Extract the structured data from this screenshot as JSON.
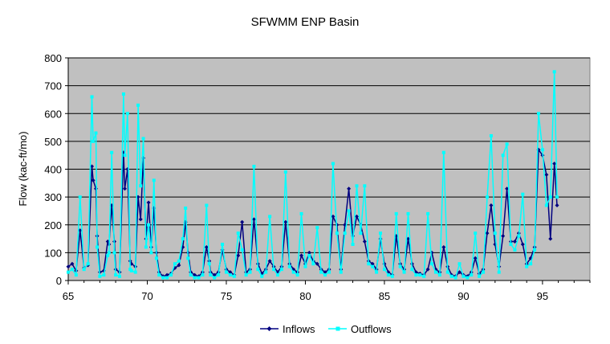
{
  "chart_data": {
    "type": "line",
    "title": "SFWMM ENP Basin",
    "xlabel": "",
    "ylabel": "Flow (kac-ft/mo)",
    "xlim": [
      65,
      98
    ],
    "ylim": [
      0,
      800
    ],
    "xticks": [
      65,
      70,
      75,
      80,
      85,
      90,
      95
    ],
    "yticks": [
      0,
      100,
      200,
      300,
      400,
      500,
      600,
      700,
      800
    ],
    "grid": true,
    "legend_position": "bottom",
    "plot_background": "#c0c0c0",
    "series": [
      {
        "name": "Inflows",
        "color": "#000080",
        "marker": "diamond",
        "points": [
          [
            65.0,
            50
          ],
          [
            65.25,
            60
          ],
          [
            65.5,
            35
          ],
          [
            65.75,
            180
          ],
          [
            66.0,
            45
          ],
          [
            66.25,
            55
          ],
          [
            66.5,
            410
          ],
          [
            66.58,
            360
          ],
          [
            66.75,
            330
          ],
          [
            66.83,
            160
          ],
          [
            67.0,
            30
          ],
          [
            67.25,
            35
          ],
          [
            67.5,
            140
          ],
          [
            67.58,
            130
          ],
          [
            67.75,
            270
          ],
          [
            67.92,
            140
          ],
          [
            68.0,
            40
          ],
          [
            68.25,
            30
          ],
          [
            68.5,
            460
          ],
          [
            68.58,
            330
          ],
          [
            68.75,
            400
          ],
          [
            68.92,
            70
          ],
          [
            69.0,
            60
          ],
          [
            69.25,
            50
          ],
          [
            69.42,
            300
          ],
          [
            69.58,
            220
          ],
          [
            69.75,
            440
          ],
          [
            69.92,
            150
          ],
          [
            70.08,
            280
          ],
          [
            70.25,
            120
          ],
          [
            70.42,
            260
          ],
          [
            70.58,
            100
          ],
          [
            70.75,
            30
          ],
          [
            71.0,
            15
          ],
          [
            71.25,
            20
          ],
          [
            71.5,
            25
          ],
          [
            71.75,
            45
          ],
          [
            72.0,
            55
          ],
          [
            72.25,
            120
          ],
          [
            72.42,
            210
          ],
          [
            72.58,
            100
          ],
          [
            72.75,
            30
          ],
          [
            73.0,
            20
          ],
          [
            73.25,
            15
          ],
          [
            73.5,
            30
          ],
          [
            73.75,
            120
          ],
          [
            73.92,
            70
          ],
          [
            74.0,
            30
          ],
          [
            74.25,
            20
          ],
          [
            74.5,
            30
          ],
          [
            74.75,
            110
          ],
          [
            75.0,
            40
          ],
          [
            75.25,
            30
          ],
          [
            75.5,
            20
          ],
          [
            75.75,
            90
          ],
          [
            76.0,
            210
          ],
          [
            76.25,
            30
          ],
          [
            76.5,
            40
          ],
          [
            76.75,
            220
          ],
          [
            77.0,
            60
          ],
          [
            77.25,
            25
          ],
          [
            77.5,
            40
          ],
          [
            77.75,
            70
          ],
          [
            78.0,
            50
          ],
          [
            78.25,
            30
          ],
          [
            78.5,
            50
          ],
          [
            78.75,
            210
          ],
          [
            79.0,
            60
          ],
          [
            79.25,
            40
          ],
          [
            79.5,
            30
          ],
          [
            79.75,
            90
          ],
          [
            80.0,
            60
          ],
          [
            80.25,
            100
          ],
          [
            80.5,
            70
          ],
          [
            80.75,
            60
          ],
          [
            81.0,
            40
          ],
          [
            81.25,
            30
          ],
          [
            81.5,
            40
          ],
          [
            81.75,
            230
          ],
          [
            82.0,
            200
          ],
          [
            82.25,
            40
          ],
          [
            82.5,
            200
          ],
          [
            82.75,
            330
          ],
          [
            83.0,
            160
          ],
          [
            83.25,
            230
          ],
          [
            83.5,
            200
          ],
          [
            83.75,
            140
          ],
          [
            84.0,
            70
          ],
          [
            84.25,
            60
          ],
          [
            84.5,
            40
          ],
          [
            84.75,
            150
          ],
          [
            85.0,
            60
          ],
          [
            85.25,
            30
          ],
          [
            85.5,
            20
          ],
          [
            85.75,
            160
          ],
          [
            86.0,
            60
          ],
          [
            86.25,
            40
          ],
          [
            86.5,
            150
          ],
          [
            86.75,
            60
          ],
          [
            87.0,
            30
          ],
          [
            87.25,
            25
          ],
          [
            87.5,
            20
          ],
          [
            87.75,
            40
          ],
          [
            88.0,
            100
          ],
          [
            88.25,
            40
          ],
          [
            88.5,
            30
          ],
          [
            88.75,
            120
          ],
          [
            89.0,
            50
          ],
          [
            89.25,
            20
          ],
          [
            89.5,
            15
          ],
          [
            89.75,
            30
          ],
          [
            90.0,
            20
          ],
          [
            90.25,
            15
          ],
          [
            90.5,
            30
          ],
          [
            90.75,
            80
          ],
          [
            91.0,
            25
          ],
          [
            91.25,
            40
          ],
          [
            91.5,
            170
          ],
          [
            91.75,
            270
          ],
          [
            92.0,
            130
          ],
          [
            92.25,
            50
          ],
          [
            92.5,
            160
          ],
          [
            92.75,
            330
          ],
          [
            93.0,
            140
          ],
          [
            93.25,
            140
          ],
          [
            93.5,
            170
          ],
          [
            93.75,
            130
          ],
          [
            94.0,
            60
          ],
          [
            94.25,
            80
          ],
          [
            94.5,
            120
          ],
          [
            94.75,
            470
          ],
          [
            95.0,
            450
          ],
          [
            95.25,
            380
          ],
          [
            95.5,
            150
          ],
          [
            95.75,
            420
          ],
          [
            95.92,
            270
          ]
        ]
      },
      {
        "name": "Outflows",
        "color": "#00ffff",
        "marker": "square",
        "points": [
          [
            65.0,
            30
          ],
          [
            65.25,
            40
          ],
          [
            65.5,
            20
          ],
          [
            65.75,
            300
          ],
          [
            66.0,
            40
          ],
          [
            66.25,
            60
          ],
          [
            66.5,
            660
          ],
          [
            66.58,
            500
          ],
          [
            66.75,
            530
          ],
          [
            66.83,
            120
          ],
          [
            67.0,
            15
          ],
          [
            67.25,
            20
          ],
          [
            67.5,
            90
          ],
          [
            67.58,
            100
          ],
          [
            67.75,
            460
          ],
          [
            67.92,
            100
          ],
          [
            68.0,
            20
          ],
          [
            68.25,
            15
          ],
          [
            68.5,
            670
          ],
          [
            68.58,
            450
          ],
          [
            68.75,
            600
          ],
          [
            68.92,
            40
          ],
          [
            69.0,
            35
          ],
          [
            69.25,
            30
          ],
          [
            69.42,
            630
          ],
          [
            69.58,
            340
          ],
          [
            69.75,
            510
          ],
          [
            69.92,
            120
          ],
          [
            70.08,
            200
          ],
          [
            70.25,
            100
          ],
          [
            70.42,
            360
          ],
          [
            70.58,
            80
          ],
          [
            70.75,
            20
          ],
          [
            71.0,
            10
          ],
          [
            71.25,
            10
          ],
          [
            71.5,
            20
          ],
          [
            71.75,
            60
          ],
          [
            72.0,
            70
          ],
          [
            72.25,
            150
          ],
          [
            72.42,
            260
          ],
          [
            72.58,
            80
          ],
          [
            72.75,
            20
          ],
          [
            73.0,
            10
          ],
          [
            73.25,
            10
          ],
          [
            73.5,
            20
          ],
          [
            73.75,
            270
          ],
          [
            73.92,
            60
          ],
          [
            74.0,
            20
          ],
          [
            74.25,
            10
          ],
          [
            74.5,
            20
          ],
          [
            74.75,
            130
          ],
          [
            75.0,
            30
          ],
          [
            75.25,
            20
          ],
          [
            75.5,
            15
          ],
          [
            75.75,
            170
          ],
          [
            76.0,
            110
          ],
          [
            76.25,
            20
          ],
          [
            76.5,
            30
          ],
          [
            76.75,
            410
          ],
          [
            77.0,
            40
          ],
          [
            77.25,
            15
          ],
          [
            77.5,
            30
          ],
          [
            77.75,
            230
          ],
          [
            78.0,
            40
          ],
          [
            78.25,
            20
          ],
          [
            78.5,
            40
          ],
          [
            78.75,
            390
          ],
          [
            79.0,
            50
          ],
          [
            79.25,
            30
          ],
          [
            79.5,
            20
          ],
          [
            79.75,
            240
          ],
          [
            80.0,
            50
          ],
          [
            80.25,
            90
          ],
          [
            80.5,
            60
          ],
          [
            80.75,
            190
          ],
          [
            81.0,
            30
          ],
          [
            81.25,
            20
          ],
          [
            81.5,
            30
          ],
          [
            81.75,
            420
          ],
          [
            82.0,
            170
          ],
          [
            82.25,
            30
          ],
          [
            82.5,
            170
          ],
          [
            82.75,
            250
          ],
          [
            83.0,
            130
          ],
          [
            83.25,
            340
          ],
          [
            83.5,
            170
          ],
          [
            83.75,
            340
          ],
          [
            84.0,
            60
          ],
          [
            84.25,
            50
          ],
          [
            84.5,
            30
          ],
          [
            84.75,
            170
          ],
          [
            85.0,
            40
          ],
          [
            85.25,
            20
          ],
          [
            85.5,
            15
          ],
          [
            85.75,
            240
          ],
          [
            86.0,
            50
          ],
          [
            86.25,
            30
          ],
          [
            86.5,
            240
          ],
          [
            86.75,
            40
          ],
          [
            87.0,
            20
          ],
          [
            87.25,
            20
          ],
          [
            87.5,
            15
          ],
          [
            87.75,
            240
          ],
          [
            88.0,
            60
          ],
          [
            88.25,
            30
          ],
          [
            88.5,
            20
          ],
          [
            88.75,
            460
          ],
          [
            89.0,
            30
          ],
          [
            89.25,
            15
          ],
          [
            89.5,
            10
          ],
          [
            89.75,
            60
          ],
          [
            90.0,
            15
          ],
          [
            90.25,
            10
          ],
          [
            90.5,
            20
          ],
          [
            90.75,
            170
          ],
          [
            91.0,
            15
          ],
          [
            91.25,
            30
          ],
          [
            91.5,
            300
          ],
          [
            91.75,
            520
          ],
          [
            92.0,
            170
          ],
          [
            92.25,
            30
          ],
          [
            92.5,
            450
          ],
          [
            92.75,
            490
          ],
          [
            93.0,
            130
          ],
          [
            93.25,
            110
          ],
          [
            93.5,
            160
          ],
          [
            93.75,
            310
          ],
          [
            94.0,
            50
          ],
          [
            94.25,
            60
          ],
          [
            94.5,
            110
          ],
          [
            94.75,
            600
          ],
          [
            95.0,
            470
          ],
          [
            95.25,
            270
          ],
          [
            95.5,
            300
          ],
          [
            95.75,
            750
          ],
          [
            95.92,
            300
          ]
        ]
      }
    ]
  }
}
